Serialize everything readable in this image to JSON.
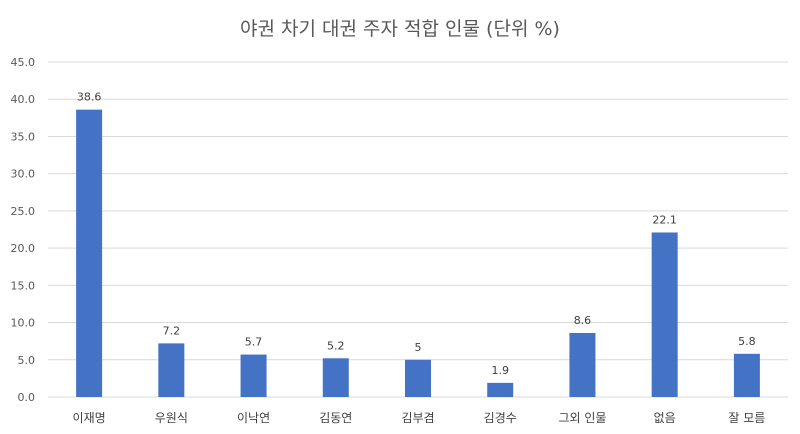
{
  "chart_data": {
    "type": "bar",
    "title": "야권 차기 대권 주자 적합 인물 (단위 %)",
    "categories": [
      "이재명",
      "우원식",
      "이낙연",
      "김동연",
      "김부겸",
      "김경수",
      "그외 인물",
      "없음",
      "잘 모름"
    ],
    "values": [
      38.6,
      7.2,
      5.7,
      5.2,
      5,
      1.9,
      8.6,
      22.1,
      5.8
    ],
    "value_labels": [
      "38.6",
      "7.2",
      "5.7",
      "5.2",
      "5",
      "1.9",
      "8.6",
      "22.1",
      "5.8"
    ],
    "y_ticks": [
      "0.0",
      "5.0",
      "10.0",
      "15.0",
      "20.0",
      "25.0",
      "30.0",
      "35.0",
      "40.0",
      "45.0"
    ],
    "ylim": [
      0,
      45
    ],
    "grid": true,
    "bar_color": "#4472C4",
    "grid_color": "#D9D9D9"
  }
}
